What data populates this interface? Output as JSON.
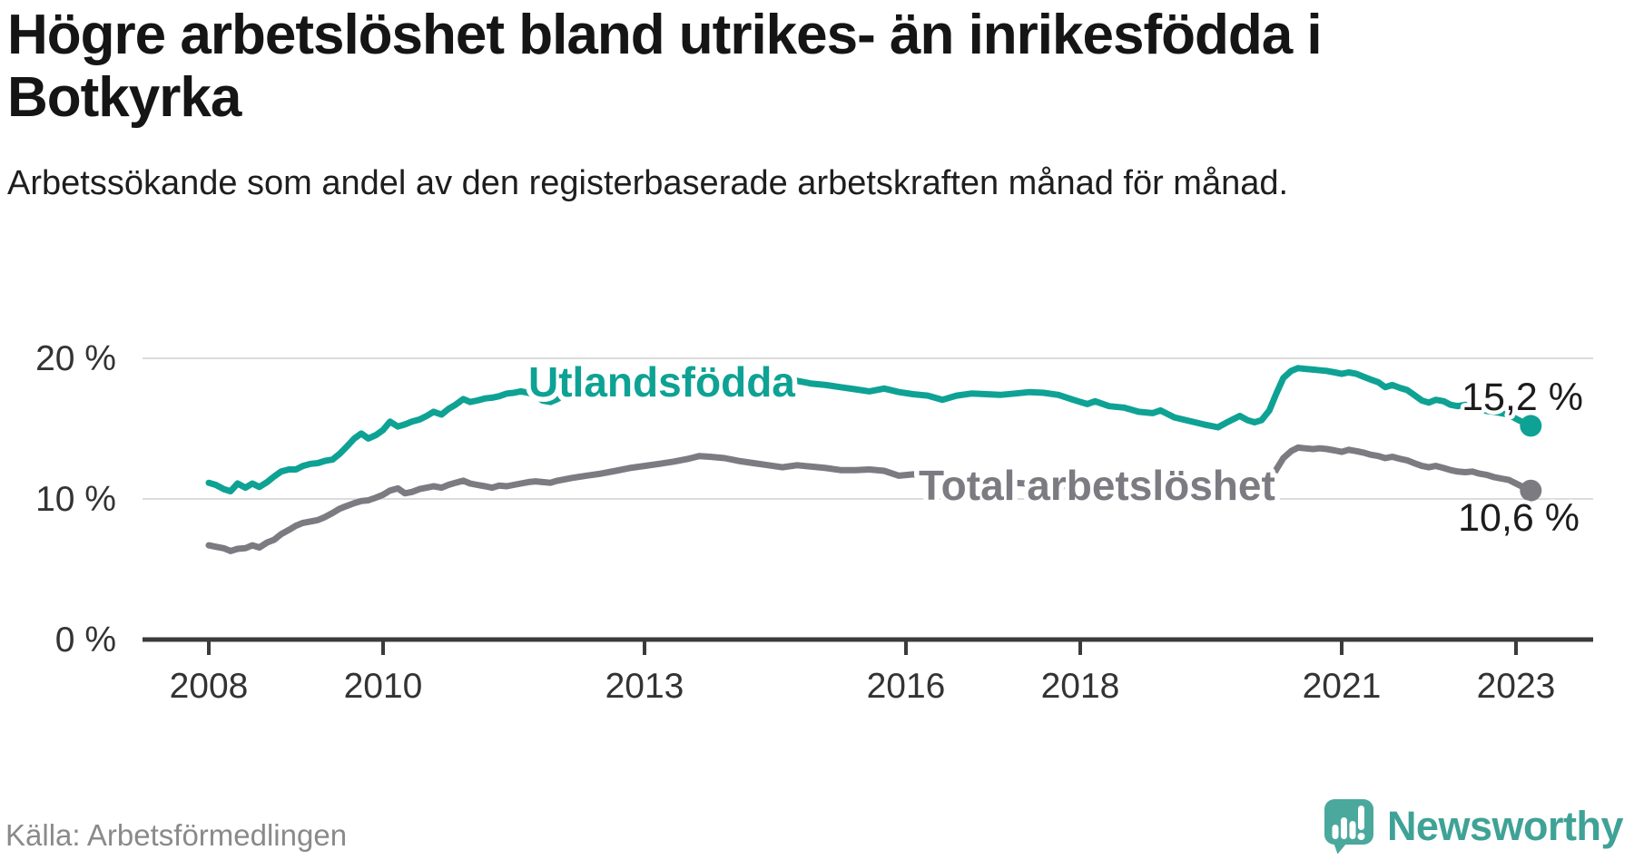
{
  "header": {
    "title": "Högre arbetslöshet bland utrikes- än inrikesfödda i Botkyrka",
    "subtitle": "Arbetssökande som andel av den registerbaserade arbetskraften månad för månad."
  },
  "footer": {
    "source": "Källa: Arbetsförmedlingen",
    "brand": "Newsworthy"
  },
  "colors": {
    "accent_teal": "#0ea294",
    "series_gray": "#7b7b81",
    "gridline": "#dcdcdc",
    "axis": "#3b3b3b",
    "tick_label": "#333333",
    "value_label": "#1c1c1c",
    "logo_teal": "#4ba89d"
  },
  "chart_data": {
    "type": "line",
    "title": "Högre arbetslöshet bland utrikes- än inrikesfödda i Botkyrka",
    "xlabel": "",
    "ylabel": "",
    "unit": "%",
    "xlim": [
      2007.25,
      2023.95
    ],
    "ylim": [
      0,
      21.8
    ],
    "grid": "horizontal",
    "legend_position": "inline-labels",
    "yticks": [
      {
        "value": 0,
        "label": "0 %"
      },
      {
        "value": 10,
        "label": "10 %"
      },
      {
        "value": 20,
        "label": "20 %"
      }
    ],
    "xticks": [
      {
        "value": 2008,
        "label": "2008"
      },
      {
        "value": 2010,
        "label": "2010"
      },
      {
        "value": 2013,
        "label": "2013"
      },
      {
        "value": 2016,
        "label": "2016"
      },
      {
        "value": 2018,
        "label": "2018"
      },
      {
        "value": 2021,
        "label": "2021"
      },
      {
        "value": 2023,
        "label": "2023"
      }
    ],
    "series": [
      {
        "name": "Utlandsfödda",
        "color": "#0ea294",
        "end_label": "15,2 %",
        "end_value": 15.2,
        "points": [
          [
            2008.0,
            11.15
          ],
          [
            2008.08,
            11.0
          ],
          [
            2008.17,
            10.7
          ],
          [
            2008.25,
            10.55
          ],
          [
            2008.33,
            11.1
          ],
          [
            2008.42,
            10.8
          ],
          [
            2008.5,
            11.1
          ],
          [
            2008.58,
            10.85
          ],
          [
            2008.67,
            11.2
          ],
          [
            2008.75,
            11.6
          ],
          [
            2008.83,
            11.95
          ],
          [
            2008.92,
            12.1
          ],
          [
            2009.0,
            12.1
          ],
          [
            2009.08,
            12.35
          ],
          [
            2009.17,
            12.5
          ],
          [
            2009.25,
            12.55
          ],
          [
            2009.33,
            12.7
          ],
          [
            2009.42,
            12.8
          ],
          [
            2009.5,
            13.2
          ],
          [
            2009.58,
            13.7
          ],
          [
            2009.67,
            14.3
          ],
          [
            2009.75,
            14.65
          ],
          [
            2009.83,
            14.3
          ],
          [
            2009.92,
            14.55
          ],
          [
            2010.0,
            14.9
          ],
          [
            2010.08,
            15.5
          ],
          [
            2010.17,
            15.15
          ],
          [
            2010.25,
            15.3
          ],
          [
            2010.33,
            15.5
          ],
          [
            2010.42,
            15.65
          ],
          [
            2010.5,
            15.9
          ],
          [
            2010.58,
            16.2
          ],
          [
            2010.67,
            16.0
          ],
          [
            2010.75,
            16.4
          ],
          [
            2010.83,
            16.7
          ],
          [
            2010.92,
            17.1
          ],
          [
            2011.0,
            16.9
          ],
          [
            2011.08,
            17.0
          ],
          [
            2011.17,
            17.15
          ],
          [
            2011.25,
            17.2
          ],
          [
            2011.33,
            17.3
          ],
          [
            2011.42,
            17.5
          ],
          [
            2011.5,
            17.55
          ],
          [
            2011.58,
            17.65
          ],
          [
            2011.67,
            17.55
          ],
          [
            2011.75,
            17.35
          ],
          [
            2011.83,
            17.0
          ],
          [
            2011.92,
            16.9
          ],
          [
            2012.0,
            17.1
          ],
          [
            2012.08,
            17.4
          ],
          [
            2012.17,
            17.6
          ],
          [
            2012.33,
            17.65
          ],
          [
            2012.5,
            17.55
          ],
          [
            2012.67,
            17.6
          ],
          [
            2012.83,
            17.65
          ],
          [
            2013.0,
            17.7
          ],
          [
            2013.25,
            17.7
          ],
          [
            2013.5,
            17.75
          ],
          [
            2013.75,
            17.8
          ],
          [
            2014.0,
            17.8
          ],
          [
            2014.17,
            17.85
          ],
          [
            2014.33,
            18.0
          ],
          [
            2014.5,
            18.3
          ],
          [
            2014.58,
            18.45
          ],
          [
            2014.75,
            18.4
          ],
          [
            2014.92,
            18.2
          ],
          [
            2015.08,
            18.1
          ],
          [
            2015.25,
            17.95
          ],
          [
            2015.42,
            17.8
          ],
          [
            2015.58,
            17.65
          ],
          [
            2015.75,
            17.85
          ],
          [
            2015.92,
            17.6
          ],
          [
            2016.08,
            17.45
          ],
          [
            2016.25,
            17.35
          ],
          [
            2016.42,
            17.05
          ],
          [
            2016.58,
            17.35
          ],
          [
            2016.75,
            17.5
          ],
          [
            2016.92,
            17.45
          ],
          [
            2017.08,
            17.4
          ],
          [
            2017.25,
            17.5
          ],
          [
            2017.42,
            17.6
          ],
          [
            2017.58,
            17.55
          ],
          [
            2017.75,
            17.4
          ],
          [
            2017.92,
            17.05
          ],
          [
            2018.08,
            16.75
          ],
          [
            2018.17,
            16.95
          ],
          [
            2018.33,
            16.6
          ],
          [
            2018.5,
            16.5
          ],
          [
            2018.67,
            16.2
          ],
          [
            2018.83,
            16.1
          ],
          [
            2018.92,
            16.3
          ],
          [
            2019.08,
            15.8
          ],
          [
            2019.25,
            15.55
          ],
          [
            2019.42,
            15.3
          ],
          [
            2019.58,
            15.1
          ],
          [
            2019.67,
            15.4
          ],
          [
            2019.83,
            15.9
          ],
          [
            2019.92,
            15.6
          ],
          [
            2020.0,
            15.45
          ],
          [
            2020.08,
            15.6
          ],
          [
            2020.17,
            16.3
          ],
          [
            2020.25,
            17.5
          ],
          [
            2020.33,
            18.6
          ],
          [
            2020.42,
            19.1
          ],
          [
            2020.5,
            19.3
          ],
          [
            2020.58,
            19.25
          ],
          [
            2020.67,
            19.2
          ],
          [
            2020.75,
            19.15
          ],
          [
            2020.83,
            19.1
          ],
          [
            2020.92,
            19.0
          ],
          [
            2021.0,
            18.9
          ],
          [
            2021.08,
            19.0
          ],
          [
            2021.17,
            18.9
          ],
          [
            2021.25,
            18.7
          ],
          [
            2021.33,
            18.5
          ],
          [
            2021.42,
            18.3
          ],
          [
            2021.5,
            17.95
          ],
          [
            2021.58,
            18.1
          ],
          [
            2021.67,
            17.9
          ],
          [
            2021.75,
            17.75
          ],
          [
            2021.83,
            17.4
          ],
          [
            2021.92,
            17.0
          ],
          [
            2022.0,
            16.85
          ],
          [
            2022.08,
            17.05
          ],
          [
            2022.17,
            16.95
          ],
          [
            2022.25,
            16.7
          ],
          [
            2022.33,
            16.6
          ],
          [
            2022.42,
            16.7
          ],
          [
            2022.5,
            16.5
          ],
          [
            2022.58,
            16.35
          ],
          [
            2022.67,
            16.25
          ],
          [
            2022.75,
            16.2
          ],
          [
            2022.83,
            16.1
          ],
          [
            2022.92,
            16.0
          ],
          [
            2023.0,
            15.7
          ],
          [
            2023.08,
            15.45
          ],
          [
            2023.17,
            15.2
          ]
        ]
      },
      {
        "name": "Total arbetslöshet",
        "color": "#7b7b81",
        "end_label": "10,6 %",
        "end_value": 10.6,
        "points": [
          [
            2008.0,
            6.7
          ],
          [
            2008.08,
            6.6
          ],
          [
            2008.17,
            6.5
          ],
          [
            2008.25,
            6.3
          ],
          [
            2008.33,
            6.45
          ],
          [
            2008.42,
            6.5
          ],
          [
            2008.5,
            6.7
          ],
          [
            2008.58,
            6.55
          ],
          [
            2008.67,
            6.9
          ],
          [
            2008.75,
            7.1
          ],
          [
            2008.83,
            7.5
          ],
          [
            2008.92,
            7.8
          ],
          [
            2009.0,
            8.1
          ],
          [
            2009.08,
            8.3
          ],
          [
            2009.17,
            8.4
          ],
          [
            2009.25,
            8.5
          ],
          [
            2009.33,
            8.7
          ],
          [
            2009.42,
            9.0
          ],
          [
            2009.5,
            9.3
          ],
          [
            2009.58,
            9.5
          ],
          [
            2009.67,
            9.7
          ],
          [
            2009.75,
            9.85
          ],
          [
            2009.83,
            9.9
          ],
          [
            2009.92,
            10.1
          ],
          [
            2010.0,
            10.3
          ],
          [
            2010.08,
            10.6
          ],
          [
            2010.17,
            10.75
          ],
          [
            2010.25,
            10.4
          ],
          [
            2010.33,
            10.5
          ],
          [
            2010.42,
            10.7
          ],
          [
            2010.5,
            10.8
          ],
          [
            2010.58,
            10.9
          ],
          [
            2010.67,
            10.8
          ],
          [
            2010.75,
            11.0
          ],
          [
            2010.83,
            11.15
          ],
          [
            2010.92,
            11.3
          ],
          [
            2011.0,
            11.1
          ],
          [
            2011.08,
            11.0
          ],
          [
            2011.17,
            10.9
          ],
          [
            2011.25,
            10.8
          ],
          [
            2011.33,
            10.95
          ],
          [
            2011.42,
            10.9
          ],
          [
            2011.5,
            11.0
          ],
          [
            2011.58,
            11.1
          ],
          [
            2011.67,
            11.2
          ],
          [
            2011.75,
            11.25
          ],
          [
            2011.83,
            11.2
          ],
          [
            2011.92,
            11.15
          ],
          [
            2012.0,
            11.3
          ],
          [
            2012.17,
            11.5
          ],
          [
            2012.33,
            11.65
          ],
          [
            2012.5,
            11.8
          ],
          [
            2012.67,
            12.0
          ],
          [
            2012.83,
            12.2
          ],
          [
            2013.0,
            12.35
          ],
          [
            2013.17,
            12.5
          ],
          [
            2013.33,
            12.65
          ],
          [
            2013.5,
            12.85
          ],
          [
            2013.63,
            13.05
          ],
          [
            2013.75,
            13.0
          ],
          [
            2013.92,
            12.9
          ],
          [
            2014.08,
            12.7
          ],
          [
            2014.25,
            12.55
          ],
          [
            2014.42,
            12.4
          ],
          [
            2014.58,
            12.25
          ],
          [
            2014.75,
            12.4
          ],
          [
            2014.92,
            12.3
          ],
          [
            2015.08,
            12.2
          ],
          [
            2015.25,
            12.05
          ],
          [
            2015.42,
            12.05
          ],
          [
            2015.58,
            12.1
          ],
          [
            2015.75,
            12.0
          ],
          [
            2015.92,
            11.65
          ],
          [
            2016.08,
            11.75
          ],
          [
            2016.25,
            11.65
          ],
          [
            2016.42,
            11.5
          ],
          [
            2016.58,
            11.4
          ],
          [
            2016.75,
            11.3
          ],
          [
            2017.0,
            11.2
          ],
          [
            2017.25,
            11.15
          ],
          [
            2017.5,
            11.05
          ],
          [
            2017.75,
            10.95
          ],
          [
            2018.0,
            10.8
          ],
          [
            2018.25,
            10.7
          ],
          [
            2018.5,
            10.6
          ],
          [
            2018.75,
            10.5
          ],
          [
            2019.0,
            10.4
          ],
          [
            2019.25,
            10.3
          ],
          [
            2019.5,
            10.25
          ],
          [
            2019.75,
            10.4
          ],
          [
            2020.0,
            10.55
          ],
          [
            2020.08,
            10.7
          ],
          [
            2020.17,
            11.2
          ],
          [
            2020.25,
            12.1
          ],
          [
            2020.33,
            12.9
          ],
          [
            2020.42,
            13.4
          ],
          [
            2020.5,
            13.65
          ],
          [
            2020.58,
            13.6
          ],
          [
            2020.67,
            13.55
          ],
          [
            2020.75,
            13.6
          ],
          [
            2020.83,
            13.55
          ],
          [
            2020.92,
            13.45
          ],
          [
            2021.0,
            13.35
          ],
          [
            2021.08,
            13.5
          ],
          [
            2021.17,
            13.4
          ],
          [
            2021.25,
            13.3
          ],
          [
            2021.33,
            13.15
          ],
          [
            2021.42,
            13.05
          ],
          [
            2021.5,
            12.9
          ],
          [
            2021.58,
            13.0
          ],
          [
            2021.67,
            12.85
          ],
          [
            2021.75,
            12.75
          ],
          [
            2021.83,
            12.55
          ],
          [
            2021.92,
            12.35
          ],
          [
            2022.0,
            12.25
          ],
          [
            2022.08,
            12.35
          ],
          [
            2022.17,
            12.2
          ],
          [
            2022.25,
            12.05
          ],
          [
            2022.33,
            11.95
          ],
          [
            2022.42,
            11.9
          ],
          [
            2022.5,
            11.95
          ],
          [
            2022.58,
            11.8
          ],
          [
            2022.67,
            11.7
          ],
          [
            2022.75,
            11.55
          ],
          [
            2022.83,
            11.45
          ],
          [
            2022.92,
            11.35
          ],
          [
            2023.0,
            11.1
          ],
          [
            2023.08,
            10.85
          ],
          [
            2023.17,
            10.6
          ]
        ]
      }
    ]
  }
}
